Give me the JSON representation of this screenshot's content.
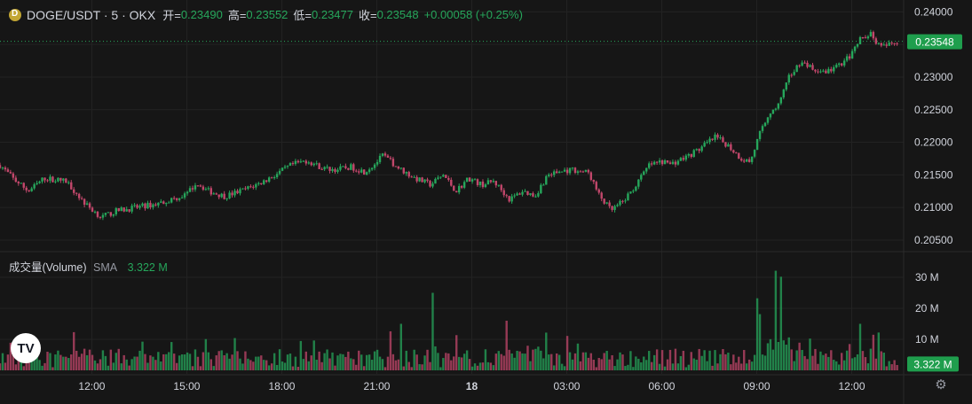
{
  "header": {
    "symbol": "DOGE/USDT · 5 · OKX",
    "open_label": "开=",
    "open": "0.23490",
    "high_label": "高=",
    "high": "0.23552",
    "low_label": "低=",
    "low": "0.23477",
    "close_label": "收=",
    "close": "0.23548",
    "change": "+0.00058 (+0.25%)",
    "coin_icon": "doge-coin-icon"
  },
  "volume_header": {
    "title": "成交量(Volume)",
    "sma_label": "SMA",
    "sma_value": "3.322 M"
  },
  "colors": {
    "up": "#26a65b",
    "down": "#c2476b",
    "background": "#161616",
    "price_badge": "#1f9e4d"
  },
  "chart_data": [
    {
      "type": "candlestick",
      "title": "DOGE/USDT · 5 · OKX",
      "y_ticks": [
        "0.24000",
        "0.23500",
        "0.23000",
        "0.22500",
        "0.22000",
        "0.21500",
        "0.21000",
        "0.20500"
      ],
      "ylim": [
        0.2035,
        0.241
      ],
      "x_ticks": [
        {
          "label": "12:00",
          "hour": 12
        },
        {
          "label": "15:00",
          "hour": 15
        },
        {
          "label": "18:00",
          "hour": 18
        },
        {
          "label": "21:00",
          "hour": 21
        },
        {
          "label": "18",
          "hour": 24
        },
        {
          "label": "03:00",
          "hour": 27
        },
        {
          "label": "06:00",
          "hour": 30
        },
        {
          "label": "09:00",
          "hour": 33
        },
        {
          "label": "12:00",
          "hour": 36
        }
      ],
      "xlim_hours": [
        9.1,
        37.5
      ],
      "last_price": "0.23548",
      "close_path_hours": [
        9.1,
        9.5,
        10.0,
        10.5,
        11.2,
        11.8,
        12.3,
        12.8,
        13.4,
        14.0,
        14.5,
        15.0,
        15.3,
        15.7,
        16.2,
        16.8,
        17.3,
        17.8,
        18.3,
        18.8,
        19.3,
        19.7,
        20.2,
        20.6,
        20.9,
        21.2,
        21.7,
        22.2,
        22.7,
        23.1,
        23.5,
        23.9,
        24.3,
        24.7,
        25.2,
        25.6,
        26.0,
        26.4,
        26.8,
        27.2,
        27.7,
        28.0,
        28.4,
        28.8,
        29.2,
        29.6,
        30.0,
        30.3,
        30.8,
        31.2,
        31.7,
        32.1,
        32.5,
        32.8,
        33.1,
        33.4,
        33.7,
        34.0,
        34.4,
        34.8,
        35.2,
        35.6,
        36.0,
        36.3,
        36.6,
        36.9,
        37.2,
        37.5
      ],
      "close_path_values": [
        0.2165,
        0.2145,
        0.2125,
        0.2145,
        0.214,
        0.2105,
        0.2085,
        0.2095,
        0.21,
        0.2105,
        0.2112,
        0.212,
        0.2138,
        0.2125,
        0.2117,
        0.2127,
        0.2137,
        0.215,
        0.2165,
        0.2172,
        0.216,
        0.2158,
        0.2162,
        0.2155,
        0.2165,
        0.218,
        0.216,
        0.2145,
        0.2135,
        0.215,
        0.2125,
        0.2145,
        0.2135,
        0.214,
        0.2112,
        0.2125,
        0.2118,
        0.215,
        0.2155,
        0.2158,
        0.2153,
        0.212,
        0.2095,
        0.211,
        0.2135,
        0.2165,
        0.217,
        0.2167,
        0.2178,
        0.219,
        0.2208,
        0.2195,
        0.2175,
        0.217,
        0.2215,
        0.2245,
        0.2258,
        0.2298,
        0.2325,
        0.231,
        0.2308,
        0.2318,
        0.2335,
        0.236,
        0.2368,
        0.2345,
        0.235,
        0.2355
      ],
      "volume": {
        "y_ticks": [
          "30 M",
          "20 M",
          "10 M"
        ],
        "ylim": [
          0,
          36
        ],
        "last_value": "3.322 M",
        "notable_spikes": [
          {
            "hour": 10.6,
            "value": 6
          },
          {
            "hour": 21.8,
            "value": 15
          },
          {
            "hour": 22.8,
            "value": 25
          },
          {
            "hour": 25.1,
            "value": 16
          },
          {
            "hour": 33.0,
            "value": 16
          },
          {
            "hour": 33.6,
            "value": 32
          },
          {
            "hour": 33.8,
            "value": 23
          },
          {
            "hour": 36.3,
            "value": 15
          }
        ]
      }
    }
  ]
}
